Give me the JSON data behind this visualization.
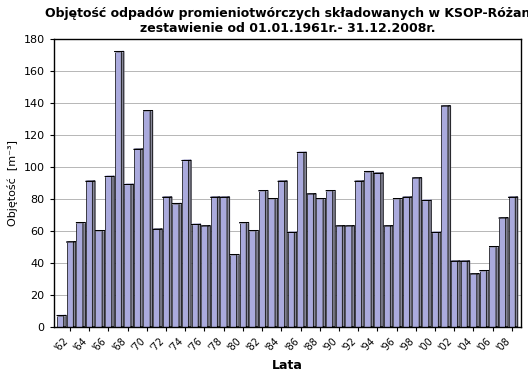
{
  "title_line1": "Objętość odpadów promieniotwórczych składowanych w KSOP-Różan",
  "title_line2": "zestawienie od 01.01.1961r.- 31.12.2008r.",
  "xlabel": "Lata",
  "ylabel": "Objętość  [m⁻³]",
  "years": [
    1961,
    1962,
    1963,
    1964,
    1965,
    1966,
    1967,
    1968,
    1969,
    1970,
    1971,
    1972,
    1973,
    1974,
    1975,
    1976,
    1977,
    1978,
    1979,
    1980,
    1981,
    1982,
    1983,
    1984,
    1985,
    1986,
    1987,
    1988,
    1989,
    1990,
    1991,
    1992,
    1993,
    1994,
    1995,
    1996,
    1997,
    1998,
    1999,
    2000,
    2001,
    2002,
    2003,
    2004,
    2005,
    2006,
    2007,
    2008
  ],
  "values": [
    7,
    53,
    65,
    91,
    60,
    94,
    172,
    89,
    111,
    135,
    61,
    81,
    77,
    104,
    64,
    63,
    81,
    81,
    45,
    65,
    60,
    85,
    80,
    91,
    59,
    109,
    83,
    80,
    85,
    63,
    63,
    91,
    97,
    96,
    63,
    80,
    81,
    93,
    79,
    59,
    138,
    41,
    41,
    33,
    35,
    50,
    68,
    81
  ],
  "bar_face_color": "#aaaadd",
  "bar_side_color": "#888899",
  "bar_edge_color": "#000000",
  "ylim": [
    0,
    180
  ],
  "yticks": [
    0,
    20,
    40,
    60,
    80,
    100,
    120,
    140,
    160,
    180
  ],
  "xtick_years": [
    1962,
    1964,
    1966,
    1968,
    1970,
    1972,
    1974,
    1976,
    1978,
    1980,
    1982,
    1984,
    1986,
    1988,
    1990,
    1992,
    1994,
    1996,
    1998,
    2000,
    2002,
    2004,
    2006,
    2008
  ],
  "bg_color": "#ffffff",
  "grid_color": "#000000",
  "bar_width": 0.7,
  "depth": 0.25
}
